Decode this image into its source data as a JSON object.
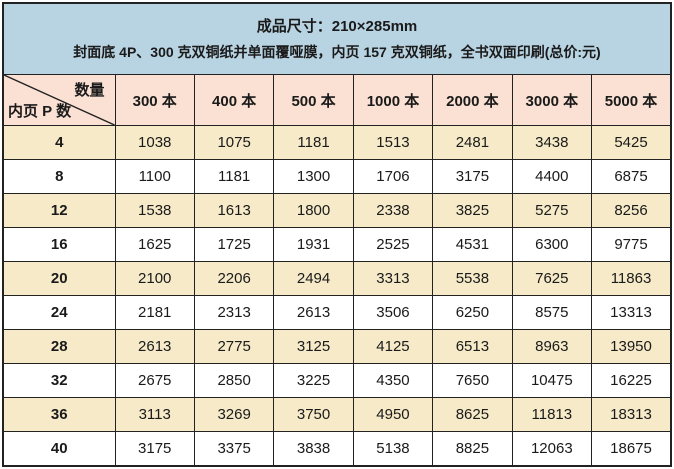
{
  "banner": {
    "line1": "成品尺寸：210×285mm",
    "line2": "封面底 4P、300 克双铜纸并单面覆哑膜，内页 157 克双铜纸，全书双面印刷(总价:元)"
  },
  "table": {
    "corner_top_right": "数量",
    "corner_bottom_left": "内页 P 数",
    "columns": [
      "300 本",
      "400 本",
      "500 本",
      "1000 本",
      "2000 本",
      "3000 本",
      "5000 本"
    ],
    "rows": [
      {
        "pages": "4",
        "values": [
          "1038",
          "1075",
          "1181",
          "1513",
          "2481",
          "3438",
          "5425"
        ]
      },
      {
        "pages": "8",
        "values": [
          "1100",
          "1181",
          "1300",
          "1706",
          "3175",
          "4400",
          "6875"
        ]
      },
      {
        "pages": "12",
        "values": [
          "1538",
          "1613",
          "1800",
          "2338",
          "3825",
          "5275",
          "8256"
        ]
      },
      {
        "pages": "16",
        "values": [
          "1625",
          "1725",
          "1931",
          "2525",
          "4531",
          "6300",
          "9775"
        ]
      },
      {
        "pages": "20",
        "values": [
          "2100",
          "2206",
          "2494",
          "3313",
          "5538",
          "7625",
          "11863"
        ]
      },
      {
        "pages": "24",
        "values": [
          "2181",
          "2313",
          "2613",
          "3506",
          "6250",
          "8575",
          "13313"
        ]
      },
      {
        "pages": "28",
        "values": [
          "2613",
          "2775",
          "3125",
          "4125",
          "6513",
          "8963",
          "13950"
        ]
      },
      {
        "pages": "32",
        "values": [
          "2675",
          "2850",
          "3225",
          "4350",
          "7650",
          "10475",
          "16225"
        ]
      },
      {
        "pages": "36",
        "values": [
          "3113",
          "3269",
          "3750",
          "4950",
          "8625",
          "11813",
          "18313"
        ]
      },
      {
        "pages": "40",
        "values": [
          "3175",
          "3375",
          "3838",
          "5138",
          "8825",
          "12063",
          "18675"
        ]
      }
    ]
  },
  "colors": {
    "banner_bg": "#b8d3e2",
    "header_bg": "#fae1d4",
    "row_alt_bg": "#f6eac8",
    "row_bg": "#ffffff",
    "border": "#222222",
    "text": "#1a1a1a"
  }
}
